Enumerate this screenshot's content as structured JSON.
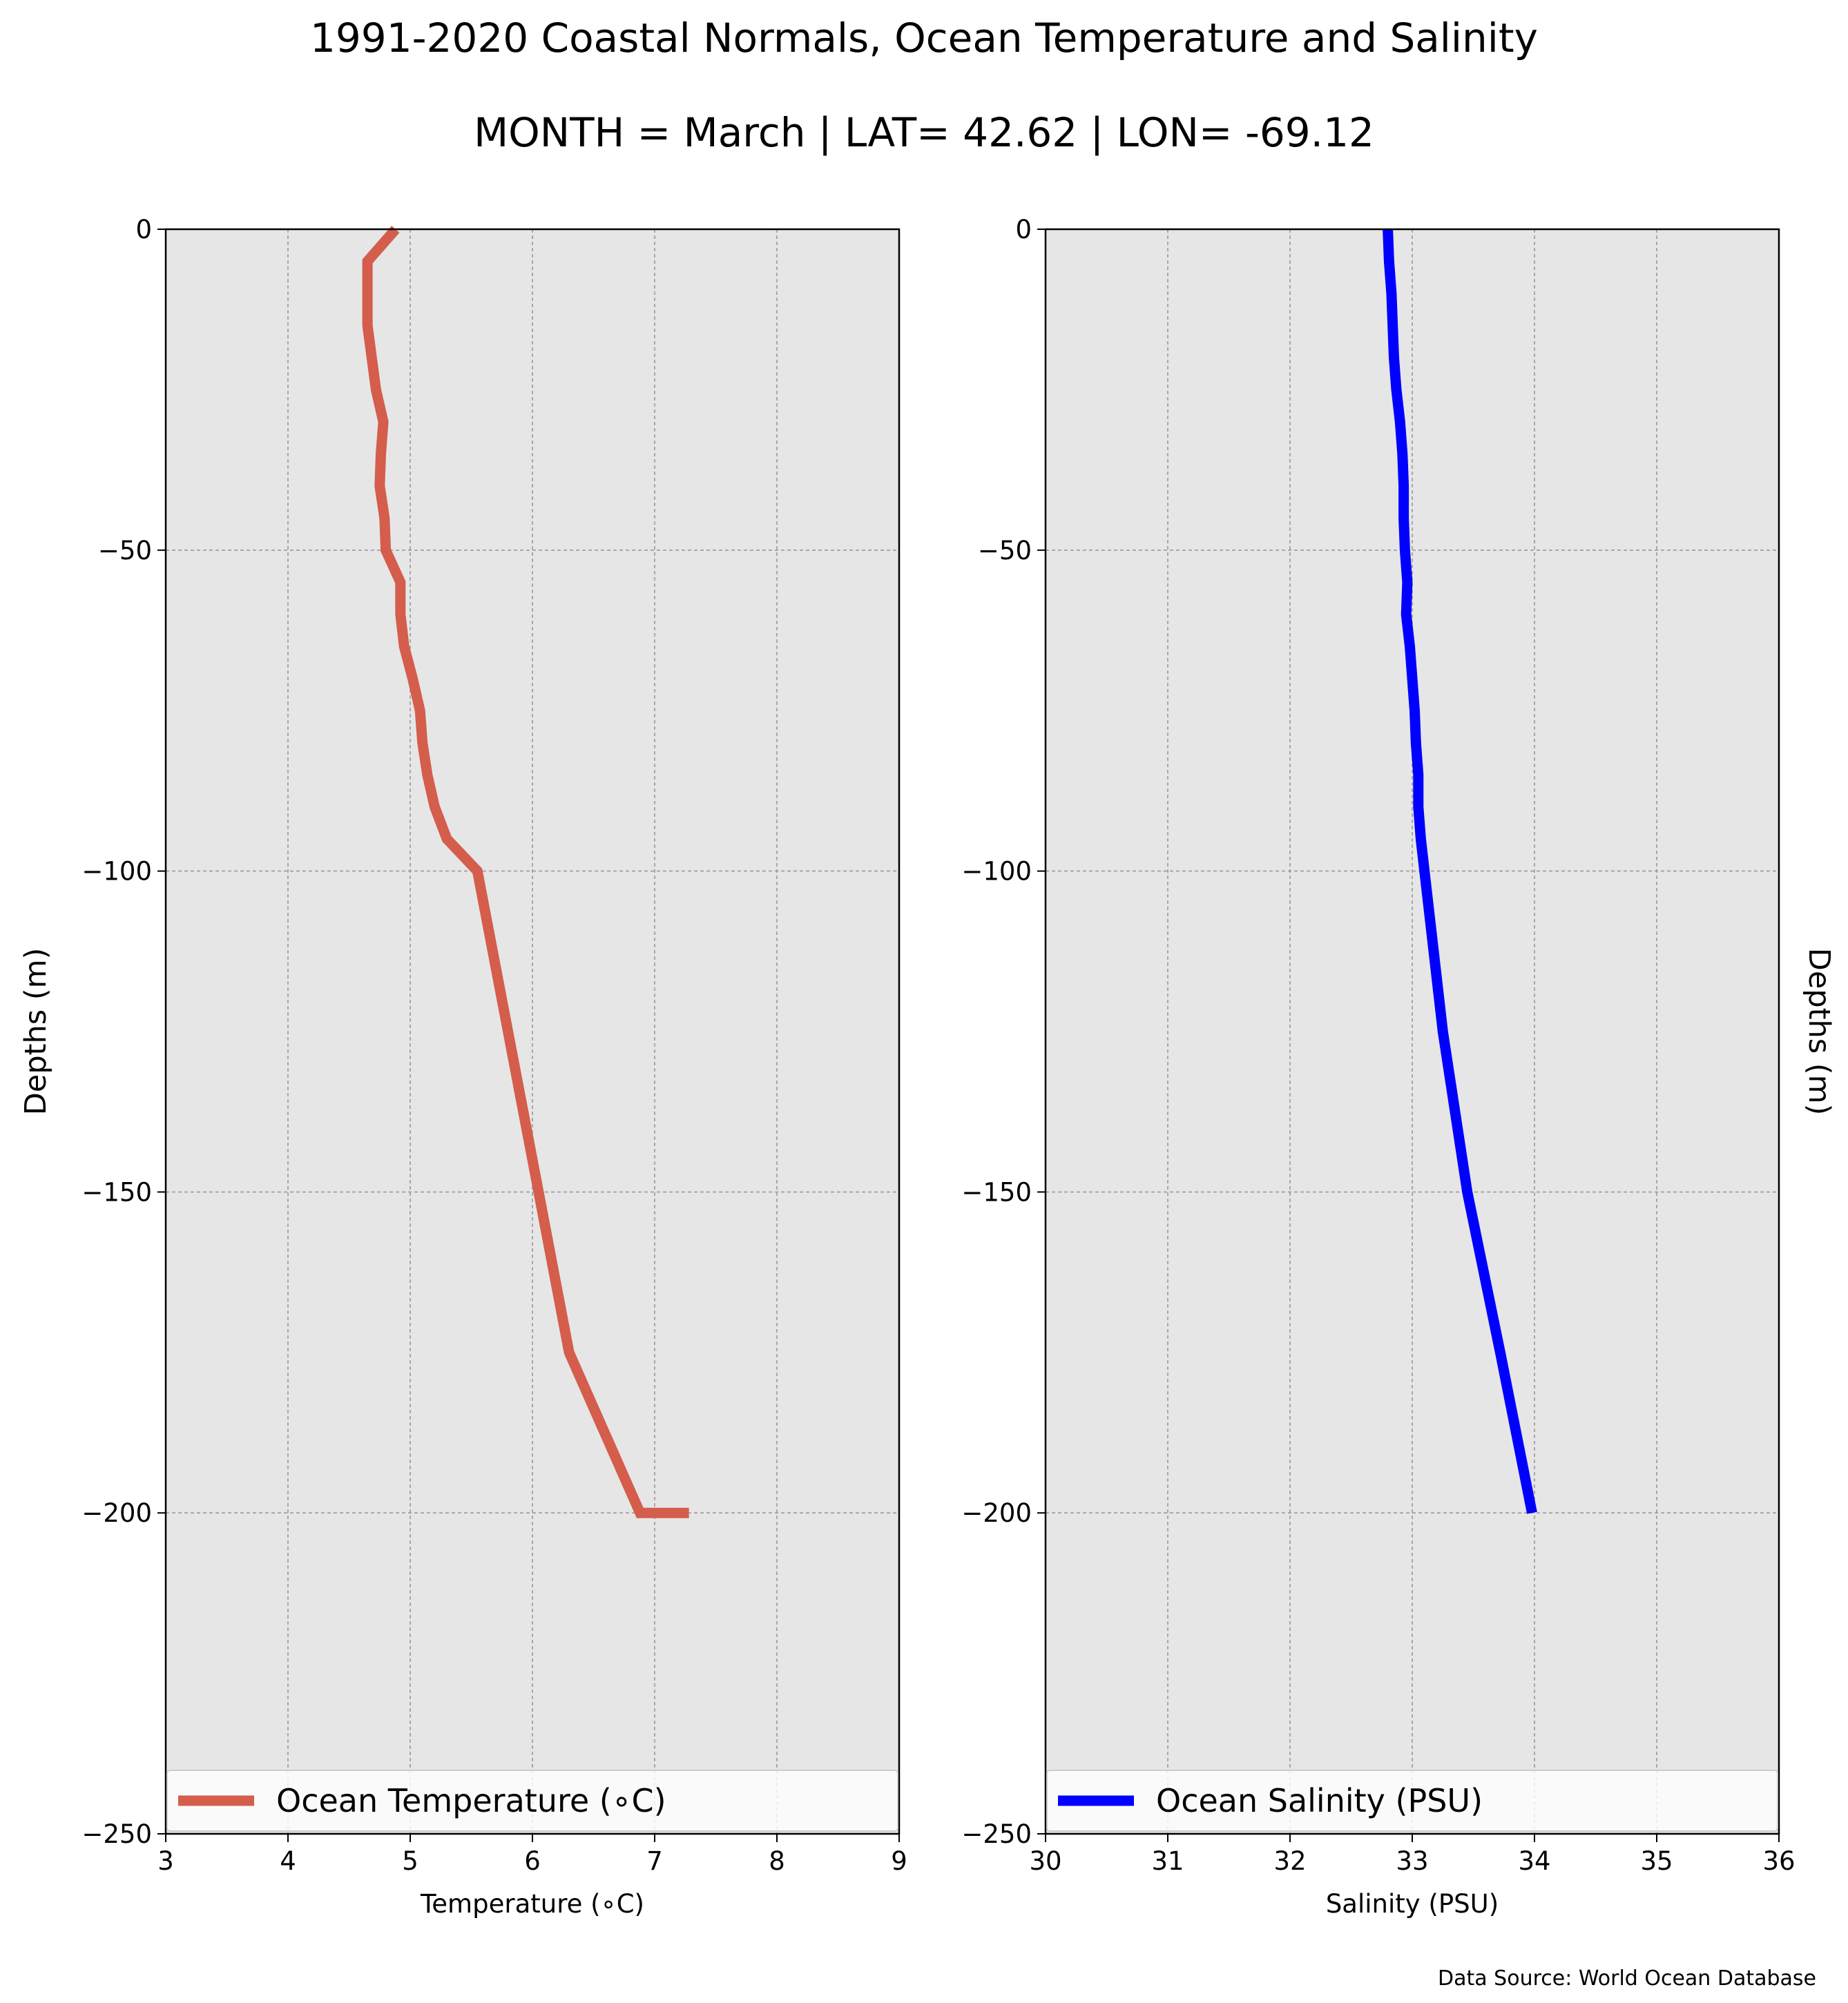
{
  "figure": {
    "title": "1991-2020 Coastal Normals, Ocean Temperature and Salinity",
    "subtitle": "MONTH = March | LAT= 42.62 | LON= -69.12",
    "source": "Data Source: World Ocean Database",
    "colors": {
      "background": "#ffffff",
      "plot_bg": "#e6e6e6",
      "grid": "#999999"
    }
  },
  "chart_data": [
    {
      "type": "line",
      "xlabel": "Temperature ($^\\circ$C)",
      "xlabel_display": "Temperature (∘C)",
      "ylabel": "Depths (m)",
      "ylabel_side": "left",
      "xlim": [
        3,
        9
      ],
      "ylim": [
        -250,
        0
      ],
      "xticks": [
        3,
        4,
        5,
        6,
        7,
        8,
        9
      ],
      "xtick_labels": [
        "3",
        "4",
        "5",
        "6",
        "7",
        "8",
        "9"
      ],
      "yticks": [
        0,
        -50,
        -100,
        -150,
        -200,
        -250
      ],
      "ytick_labels": [
        "0",
        "−50",
        "−100",
        "−150",
        "−200",
        "−250"
      ],
      "grid": true,
      "legend_placement": "lower center",
      "series": [
        {
          "name": "Ocean Temperature (∘C)",
          "color": "#d45d4c",
          "x": [
            4.88,
            4.65,
            4.65,
            4.65,
            4.72,
            4.78,
            4.76,
            4.75,
            4.79,
            4.8,
            4.92,
            4.92,
            4.95,
            5.02,
            5.08,
            5.1,
            5.14,
            5.2,
            5.3,
            5.55,
            5.8,
            6.05,
            6.3,
            6.88,
            7.28
          ],
          "y": [
            0,
            -5,
            -10,
            -15,
            -25,
            -30,
            -35,
            -40,
            -45,
            -50,
            -55,
            -60,
            -65,
            -70,
            -75,
            -80,
            -85,
            -90,
            -95,
            -100,
            -125,
            -150,
            -175,
            -200,
            -200
          ]
        }
      ]
    },
    {
      "type": "line",
      "xlabel": "Salinity (PSU)",
      "ylabel": "Depths (m)",
      "ylabel_side": "right",
      "xlim": [
        30,
        36
      ],
      "ylim": [
        -250,
        0
      ],
      "xticks": [
        30,
        31,
        32,
        33,
        34,
        35,
        36
      ],
      "xtick_labels": [
        "30",
        "31",
        "32",
        "33",
        "34",
        "35",
        "36"
      ],
      "yticks": [
        0,
        -50,
        -100,
        -150,
        -200,
        -250
      ],
      "ytick_labels": [
        "0",
        "−50",
        "−100",
        "−150",
        "−200",
        "−250"
      ],
      "grid": true,
      "legend_placement": "lower center",
      "series": [
        {
          "name": "Ocean Salinity (PSU)",
          "color": "#0000ff",
          "x": [
            32.8,
            32.81,
            32.83,
            32.85,
            32.87,
            32.9,
            32.92,
            32.93,
            32.93,
            32.94,
            32.96,
            32.95,
            32.98,
            33.0,
            33.02,
            33.03,
            33.05,
            33.05,
            33.07,
            33.1,
            33.25,
            33.45,
            33.72,
            33.98
          ],
          "y": [
            0,
            -5,
            -10,
            -20,
            -25,
            -30,
            -35,
            -40,
            -45,
            -50,
            -55,
            -60,
            -65,
            -70,
            -75,
            -80,
            -85,
            -90,
            -95,
            -100,
            -125,
            -150,
            -175,
            -200
          ]
        }
      ]
    }
  ]
}
